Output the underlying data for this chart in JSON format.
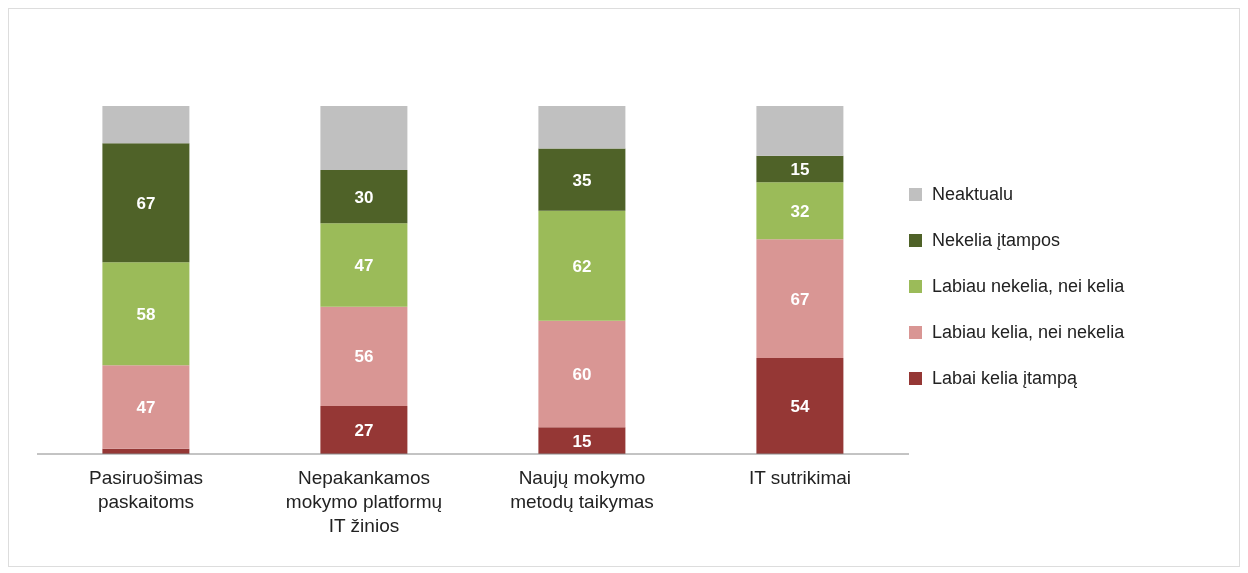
{
  "chart_data": {
    "type": "bar",
    "stacked": true,
    "legend": "right",
    "categories": [
      "Pasiruošimas paskaitoms",
      "Nepakankamos mokymo platformų IT žinios",
      "Naujų mokymo metodų taikymas",
      "IT sutrikimai"
    ],
    "series": [
      {
        "name": "Labai kelia įtampą",
        "color": "#953735",
        "values": [
          3,
          27,
          15,
          54
        ],
        "value_labels": [
          null,
          "27",
          "15",
          "54"
        ]
      },
      {
        "name": "Labiau kelia, nei nekelia",
        "color": "#d99694",
        "values": [
          47,
          56,
          60,
          67
        ],
        "value_labels": [
          "47",
          "56",
          "60",
          "67"
        ]
      },
      {
        "name": "Labiau nekelia, nei kelia",
        "color": "#9bbb59",
        "values": [
          58,
          47,
          62,
          32
        ],
        "value_labels": [
          "58",
          "47",
          "62",
          "32"
        ]
      },
      {
        "name": "Nekelia įtampos",
        "color": "#4f6228",
        "values": [
          67,
          30,
          35,
          15
        ],
        "value_labels": [
          "67",
          "30",
          "35",
          "15"
        ]
      },
      {
        "name": "Neaktualu",
        "color": "#c0c0c0",
        "values": [
          21,
          36,
          24,
          28
        ],
        "value_labels": [
          null,
          null,
          null,
          null
        ]
      }
    ]
  }
}
